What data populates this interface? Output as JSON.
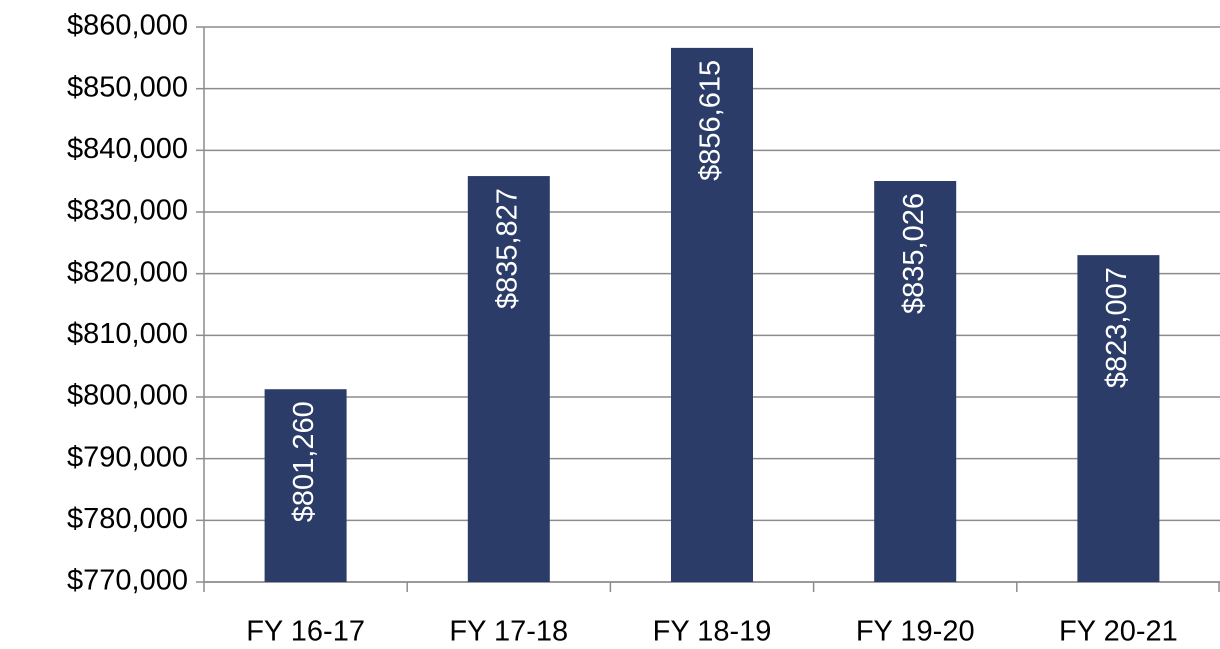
{
  "chart_data": {
    "type": "bar",
    "categories": [
      "FY 16-17",
      "FY 17-18",
      "FY 18-19",
      "FY 19-20",
      "FY 20-21"
    ],
    "values": [
      801260,
      835827,
      856615,
      835026,
      823007
    ],
    "value_labels": [
      "$801,260",
      "$835,827",
      "$856,615",
      "$835,026",
      "$823,007"
    ],
    "color": "#2b3c68",
    "ylim": [
      770000,
      860000
    ],
    "yticks": [
      {
        "value": 770000,
        "label": "$770,000"
      },
      {
        "value": 780000,
        "label": "$780,000"
      },
      {
        "value": 790000,
        "label": "$790,000"
      },
      {
        "value": 800000,
        "label": "$800,000"
      },
      {
        "value": 810000,
        "label": "$810,000"
      },
      {
        "value": 820000,
        "label": "$820,000"
      },
      {
        "value": 830000,
        "label": "$830,000"
      },
      {
        "value": 840000,
        "label": "$840,000"
      },
      {
        "value": 850000,
        "label": "$850,000"
      },
      {
        "value": 860000,
        "label": "$860,000"
      }
    ],
    "grid": true
  }
}
